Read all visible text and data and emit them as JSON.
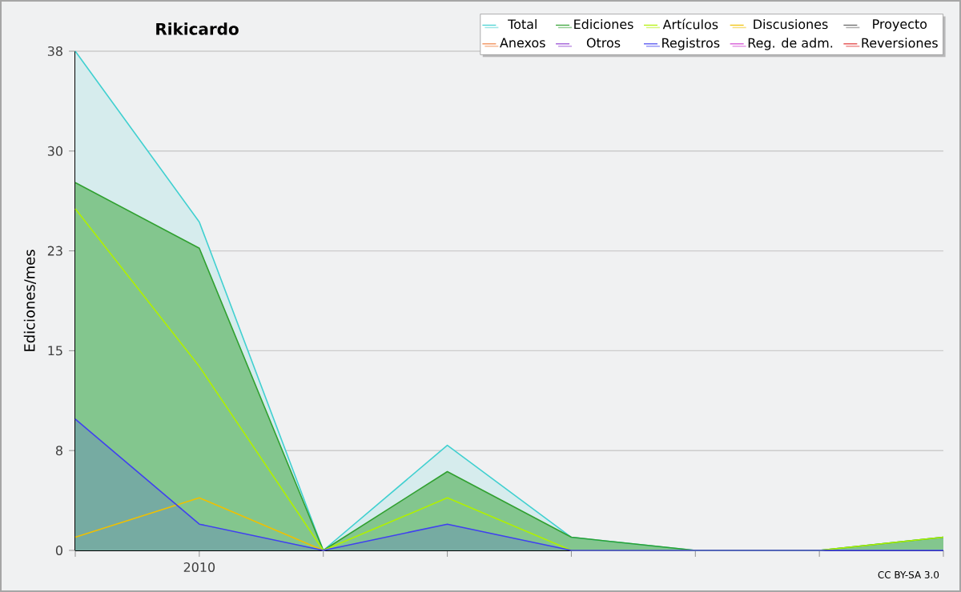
{
  "chart_data": {
    "type": "line",
    "title": "Rikicardo",
    "ylabel": "Ediciones/mes",
    "categories": [
      null,
      "2010",
      null,
      null,
      null,
      null,
      null,
      null
    ],
    "ylim": [
      0,
      38
    ],
    "yticks": [
      0,
      {
        "value": 7.6,
        "label": "8"
      },
      {
        "value": 15.2,
        "label": "15"
      },
      {
        "value": 22.8,
        "label": "23"
      },
      {
        "value": 30.4,
        "label": "30"
      },
      38
    ],
    "grid": "y",
    "legend": "top right",
    "annotations": [
      "CC BY-SA 3.0"
    ],
    "series": [
      {
        "name": "Total",
        "type": "area",
        "color": "#40d0d0",
        "values": [
          38,
          25,
          0,
          8,
          1,
          0,
          0,
          1
        ]
      },
      {
        "name": "Ediciones",
        "type": "area",
        "color": "#30a030",
        "values": [
          28,
          23,
          0,
          6,
          1,
          0,
          0,
          1
        ]
      },
      {
        "name": "Artículos",
        "color": "#b0f000",
        "values": [
          26,
          14,
          0,
          4,
          0,
          0,
          0,
          1
        ]
      },
      {
        "name": "Discusiones",
        "color": "#f0c000",
        "values": [
          1,
          4,
          0,
          null,
          null,
          null,
          null,
          null
        ]
      },
      {
        "name": "Proyecto",
        "color": "#606060",
        "values": [
          null,
          null,
          null,
          null,
          null,
          null,
          null,
          null
        ]
      },
      {
        "name": "Anexos",
        "color": "#f08040",
        "values": [
          null,
          null,
          null,
          null,
          null,
          null,
          null,
          null
        ]
      },
      {
        "name": "Otros",
        "color": "#9040d0",
        "values": [
          null,
          null,
          null,
          null,
          null,
          null,
          null,
          null
        ]
      },
      {
        "name": "Registros",
        "type": "area",
        "color": "#4040f0",
        "values": [
          10,
          2,
          0,
          2,
          0,
          0,
          0,
          0
        ]
      },
      {
        "name": "Reg. de adm.",
        "color": "#d040d0",
        "values": [
          null,
          null,
          null,
          null,
          null,
          null,
          null,
          null
        ]
      },
      {
        "name": "Reversiones",
        "color": "#e03030",
        "values": [
          null,
          null,
          null,
          null,
          null,
          null,
          null,
          null
        ]
      }
    ]
  }
}
